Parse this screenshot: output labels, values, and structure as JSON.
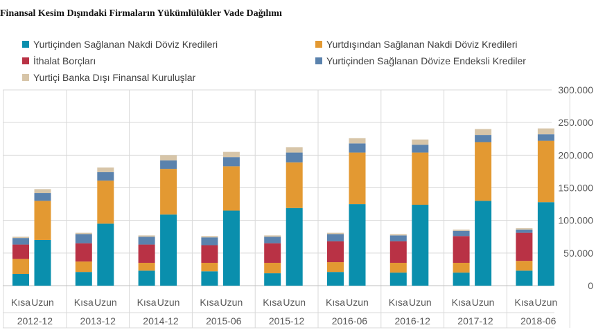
{
  "chart_data": {
    "type": "bar",
    "stacked": true,
    "title": "Finansal Kesim Dışındaki Firmaların Yükümlülükler Vade Dağılımı",
    "groups": [
      "2012-12",
      "2013-12",
      "2014-12",
      "2015-06",
      "2015-12",
      "2016-06",
      "2016-12",
      "2017-12",
      "2018-06"
    ],
    "subcategories": [
      "Kısa",
      "Uzun"
    ],
    "ylim": [
      0,
      300000
    ],
    "yticks": [
      "0",
      "50.000",
      "100.000",
      "150.000",
      "200.000",
      "250.000",
      "300.000"
    ],
    "ytick_values": [
      0,
      50000,
      100000,
      150000,
      200000,
      250000,
      300000
    ],
    "grid": true,
    "legend_position": "top",
    "series": [
      {
        "name": "Yurtiçinden Sağlanan Nakdi Döviz Kredileri",
        "color": "#0a8fad",
        "values": [
          18000,
          70000,
          21000,
          95000,
          23000,
          109000,
          22000,
          115000,
          19000,
          119000,
          21000,
          125000,
          20000,
          124000,
          20000,
          130000,
          23000,
          128000
        ]
      },
      {
        "name": "Yurtdışından Sağlanan Nakdi Döviz Kredileri",
        "color": "#e39932",
        "values": [
          23000,
          60000,
          16000,
          66000,
          12000,
          70000,
          13000,
          68000,
          16000,
          70000,
          15000,
          79000,
          15000,
          80000,
          15000,
          90000,
          15000,
          94000
        ]
      },
      {
        "name": "İthalat Borçları",
        "color": "#b93245",
        "values": [
          22000,
          0,
          28000,
          0,
          28000,
          0,
          27000,
          0,
          30000,
          0,
          32000,
          0,
          33000,
          0,
          41000,
          0,
          43000,
          0
        ]
      },
      {
        "name": "Yurtiçinden Sağlanan Dövize Endeksli Krediler",
        "color": "#5a82ad",
        "values": [
          10000,
          12000,
          14000,
          13000,
          12000,
          13000,
          12000,
          14000,
          10000,
          15000,
          11000,
          14000,
          9000,
          12000,
          8000,
          11000,
          5000,
          10000
        ]
      },
      {
        "name": "Yurtiçi Banka Dışı Finansal Kuruluşlar",
        "color": "#d7c5a8",
        "values": [
          2000,
          6000,
          2000,
          7000,
          2000,
          8000,
          2000,
          8000,
          2000,
          8000,
          2000,
          8000,
          2000,
          8000,
          2000,
          9000,
          2000,
          9000
        ]
      }
    ]
  }
}
